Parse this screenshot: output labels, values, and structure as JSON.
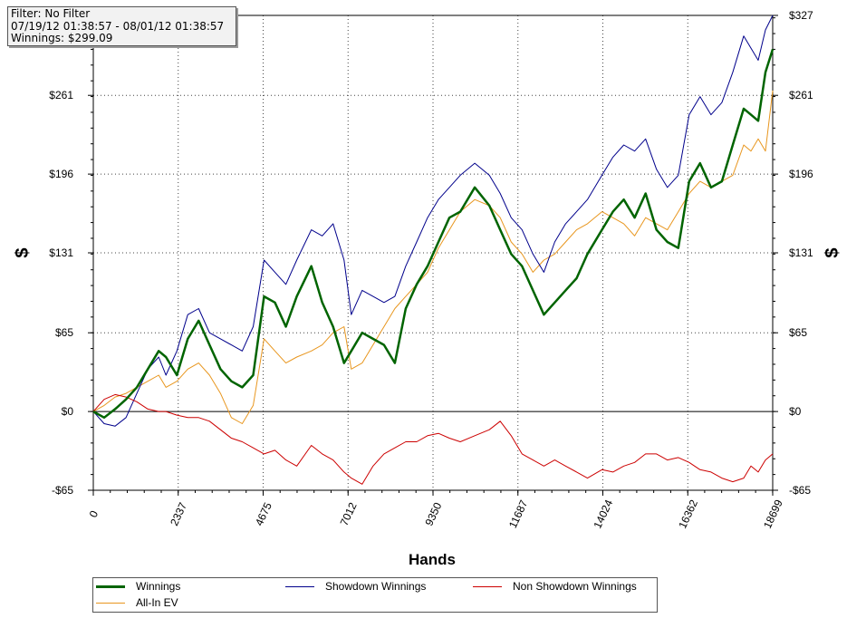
{
  "info_box": {
    "filter": "Filter: No Filter",
    "date_range": "07/19/12 01:38:57 - 08/01/12 01:38:57",
    "winnings": "Winnings: $299.09"
  },
  "chart_data": {
    "type": "line",
    "xlabel": "Hands",
    "ylabel": "$",
    "xlim": [
      0,
      18699
    ],
    "ylim": [
      -65,
      327
    ],
    "x_ticks": [
      0,
      2337,
      4675,
      7012,
      9350,
      11687,
      14024,
      16362,
      18699
    ],
    "y_ticks": [
      -65,
      0,
      65,
      131,
      196,
      261,
      327
    ],
    "y_tick_labels": [
      "-$65",
      "$0",
      "$65",
      "$131",
      "$196",
      "$261",
      "$327"
    ],
    "grid": true,
    "legend_position": "bottom",
    "series": [
      {
        "name": "Winnings",
        "color": "#006400",
        "x": [
          0,
          300,
          600,
          900,
          1200,
          1500,
          1800,
          2000,
          2300,
          2600,
          2900,
          3200,
          3500,
          3800,
          4100,
          4400,
          4700,
          5000,
          5300,
          5600,
          6000,
          6300,
          6600,
          6900,
          7100,
          7400,
          7700,
          8000,
          8300,
          8600,
          8900,
          9200,
          9500,
          9800,
          10100,
          10500,
          10900,
          11200,
          11500,
          11800,
          12100,
          12400,
          12700,
          13000,
          13300,
          13600,
          14000,
          14300,
          14600,
          14900,
          15200,
          15500,
          15800,
          16100,
          16400,
          16700,
          17000,
          17300,
          17600,
          17900,
          18100,
          18300,
          18500,
          18699
        ],
        "values": [
          0,
          -5,
          2,
          10,
          20,
          35,
          50,
          45,
          30,
          60,
          75,
          55,
          35,
          25,
          20,
          30,
          95,
          90,
          70,
          95,
          120,
          90,
          70,
          40,
          50,
          65,
          60,
          55,
          40,
          85,
          105,
          120,
          140,
          160,
          165,
          185,
          170,
          150,
          130,
          120,
          100,
          80,
          90,
          100,
          110,
          130,
          150,
          165,
          175,
          160,
          180,
          150,
          140,
          135,
          190,
          205,
          185,
          190,
          220,
          250,
          245,
          240,
          280,
          299
        ]
      },
      {
        "name": "Showdown Winnings",
        "color": "#00008b",
        "x": [
          0,
          300,
          600,
          900,
          1200,
          1500,
          1800,
          2000,
          2300,
          2600,
          2900,
          3200,
          3500,
          3800,
          4100,
          4400,
          4700,
          5000,
          5300,
          5600,
          6000,
          6300,
          6600,
          6900,
          7100,
          7400,
          7700,
          8000,
          8300,
          8600,
          8900,
          9200,
          9500,
          9800,
          10100,
          10500,
          10900,
          11200,
          11500,
          11800,
          12100,
          12400,
          12700,
          13000,
          13300,
          13600,
          14000,
          14300,
          14600,
          14900,
          15200,
          15500,
          15800,
          16100,
          16400,
          16700,
          17000,
          17300,
          17600,
          17900,
          18100,
          18300,
          18500,
          18699
        ],
        "values": [
          0,
          -10,
          -12,
          -5,
          15,
          35,
          45,
          30,
          50,
          80,
          85,
          65,
          60,
          55,
          50,
          70,
          125,
          115,
          105,
          125,
          150,
          145,
          155,
          125,
          80,
          100,
          95,
          90,
          95,
          120,
          140,
          160,
          175,
          185,
          195,
          205,
          195,
          180,
          160,
          150,
          130,
          115,
          140,
          155,
          165,
          175,
          195,
          210,
          220,
          215,
          225,
          200,
          185,
          195,
          245,
          260,
          245,
          255,
          280,
          310,
          300,
          290,
          315,
          327
        ]
      },
      {
        "name": "Non Showdown Winnings",
        "color": "#cc0000",
        "x": [
          0,
          300,
          600,
          900,
          1200,
          1500,
          1800,
          2000,
          2300,
          2600,
          2900,
          3200,
          3500,
          3800,
          4100,
          4400,
          4700,
          5000,
          5300,
          5600,
          6000,
          6300,
          6600,
          6900,
          7100,
          7400,
          7700,
          8000,
          8300,
          8600,
          8900,
          9200,
          9500,
          9800,
          10100,
          10500,
          10900,
          11200,
          11500,
          11800,
          12100,
          12400,
          12700,
          13000,
          13300,
          13600,
          14000,
          14300,
          14600,
          14900,
          15200,
          15500,
          15800,
          16100,
          16400,
          16700,
          17000,
          17300,
          17600,
          17900,
          18100,
          18300,
          18500,
          18699
        ],
        "values": [
          0,
          10,
          14,
          12,
          8,
          2,
          0,
          0,
          -3,
          -5,
          -5,
          -8,
          -15,
          -22,
          -25,
          -30,
          -35,
          -32,
          -40,
          -45,
          -28,
          -35,
          -40,
          -50,
          -55,
          -60,
          -45,
          -35,
          -30,
          -25,
          -25,
          -20,
          -18,
          -22,
          -25,
          -20,
          -15,
          -8,
          -20,
          -35,
          -40,
          -45,
          -40,
          -45,
          -50,
          -55,
          -48,
          -50,
          -45,
          -42,
          -35,
          -35,
          -40,
          -38,
          -42,
          -48,
          -50,
          -55,
          -58,
          -55,
          -45,
          -50,
          -40,
          -35
        ]
      },
      {
        "name": "All-In EV",
        "color": "#e8961e",
        "x": [
          0,
          300,
          600,
          900,
          1200,
          1500,
          1800,
          2000,
          2300,
          2600,
          2900,
          3200,
          3500,
          3800,
          4100,
          4400,
          4700,
          5000,
          5300,
          5600,
          6000,
          6300,
          6600,
          6900,
          7100,
          7400,
          7700,
          8000,
          8300,
          8600,
          8900,
          9200,
          9500,
          9800,
          10100,
          10500,
          10900,
          11200,
          11500,
          11800,
          12100,
          12400,
          12700,
          13000,
          13300,
          13600,
          14000,
          14300,
          14600,
          14900,
          15200,
          15500,
          15800,
          16100,
          16400,
          16700,
          17000,
          17300,
          17600,
          17900,
          18100,
          18300,
          18500,
          18699
        ],
        "values": [
          0,
          5,
          12,
          15,
          20,
          25,
          30,
          20,
          25,
          35,
          40,
          30,
          15,
          -5,
          -10,
          5,
          60,
          50,
          40,
          45,
          50,
          55,
          65,
          70,
          35,
          40,
          55,
          70,
          85,
          95,
          105,
          115,
          135,
          150,
          165,
          175,
          170,
          160,
          140,
          130,
          115,
          125,
          130,
          140,
          150,
          155,
          165,
          160,
          155,
          145,
          160,
          155,
          150,
          165,
          180,
          190,
          185,
          190,
          195,
          220,
          215,
          225,
          215,
          265
        ]
      }
    ]
  }
}
